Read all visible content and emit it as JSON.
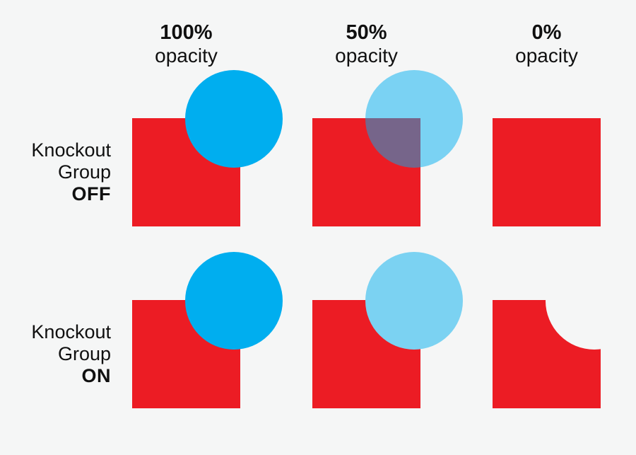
{
  "diagram": {
    "name": "knockout-group-opacity-demo",
    "columns": [
      {
        "value": "100%",
        "label": "opacity"
      },
      {
        "value": "50%",
        "label": "opacity"
      },
      {
        "value": "0%",
        "label": "opacity"
      }
    ],
    "rows": [
      {
        "line1": "Knockout",
        "line2": "Group",
        "state": "OFF"
      },
      {
        "line1": "Knockout",
        "line2": "Group",
        "state": "ON"
      }
    ],
    "palette": {
      "background": "#F5F6F6",
      "square_red": "#EC1C24",
      "circle_blue": "#00AEEF",
      "circle_blue_50_over_background": "#7BD2F2",
      "circle_blue_50_translucent": "rgba(0,174,239,0.5)",
      "overlap_blend_50_over_red": "#766589",
      "text": "#101010"
    },
    "cells": [
      {
        "row": "OFF",
        "column": "100%",
        "square": "#EC1C24",
        "circle": "#00AEEF",
        "effect": "opaque blue circle covers red square corner"
      },
      {
        "row": "OFF",
        "column": "50%",
        "square": "#EC1C24",
        "circle": "rgba(0,174,239,0.5)",
        "effect": "translucent circle blends with red where they overlap"
      },
      {
        "row": "OFF",
        "column": "0%",
        "square": "#EC1C24",
        "circle": null,
        "effect": "circle fully invisible, square untouched"
      },
      {
        "row": "ON",
        "column": "100%",
        "square": "#EC1C24",
        "circle": "#00AEEF",
        "effect": "opaque blue circle covers red square corner"
      },
      {
        "row": "ON",
        "column": "50%",
        "square": "#EC1C24",
        "circle": "#7BD2F2",
        "effect": "circle knocks out red, shows 50% blue over backdrop only"
      },
      {
        "row": "ON",
        "column": "0%",
        "square": "#EC1C24",
        "circle": "#F5F6F6",
        "effect": "invisible circle still knocks a bite out of the red square"
      }
    ]
  }
}
